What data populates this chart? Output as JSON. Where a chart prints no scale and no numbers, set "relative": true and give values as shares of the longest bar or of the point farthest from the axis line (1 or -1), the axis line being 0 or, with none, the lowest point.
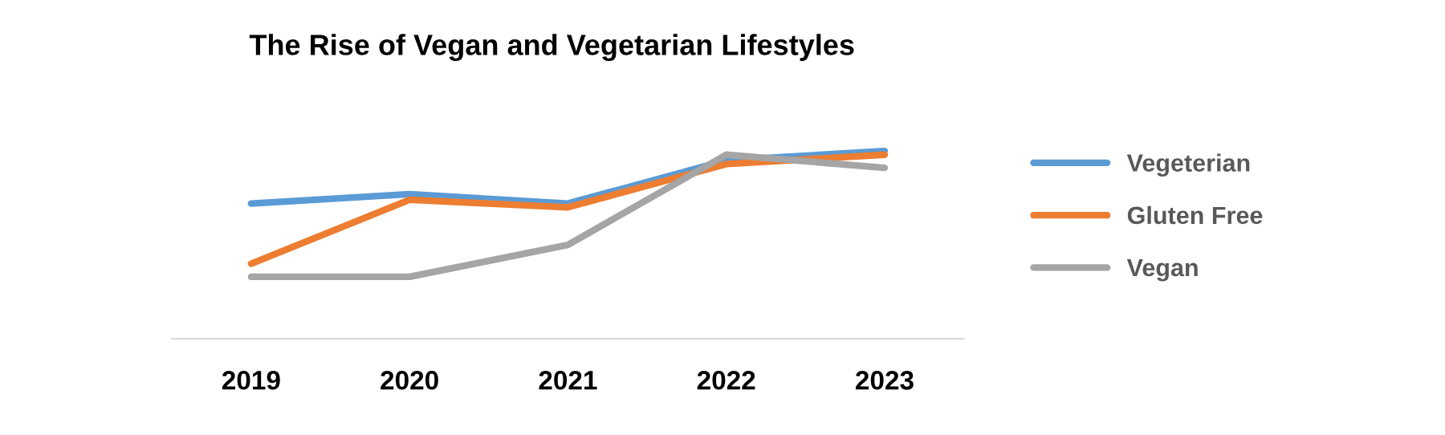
{
  "chart_data": {
    "type": "line",
    "title": "The Rise of Vegan and Vegetarian Lifestyles",
    "categories": [
      "2019",
      "2020",
      "2021",
      "2022",
      "2023"
    ],
    "relative": true,
    "legend": "right",
    "grid": false,
    "marker": "none",
    "line_style": "solid",
    "series": [
      {
        "name": "Vegeterian",
        "color": "#5b9bd5",
        "values": [
          0.72,
          0.77,
          0.72,
          0.95,
          1
        ]
      },
      {
        "name": "Gluten Free",
        "color": "#ed7d31",
        "values": [
          0.4,
          0.74,
          0.7,
          0.93,
          0.98
        ]
      },
      {
        "name": "Vegan",
        "color": "#a5a5a5",
        "values": [
          0.33,
          0.33,
          0.5,
          0.98,
          0.91
        ]
      }
    ]
  }
}
